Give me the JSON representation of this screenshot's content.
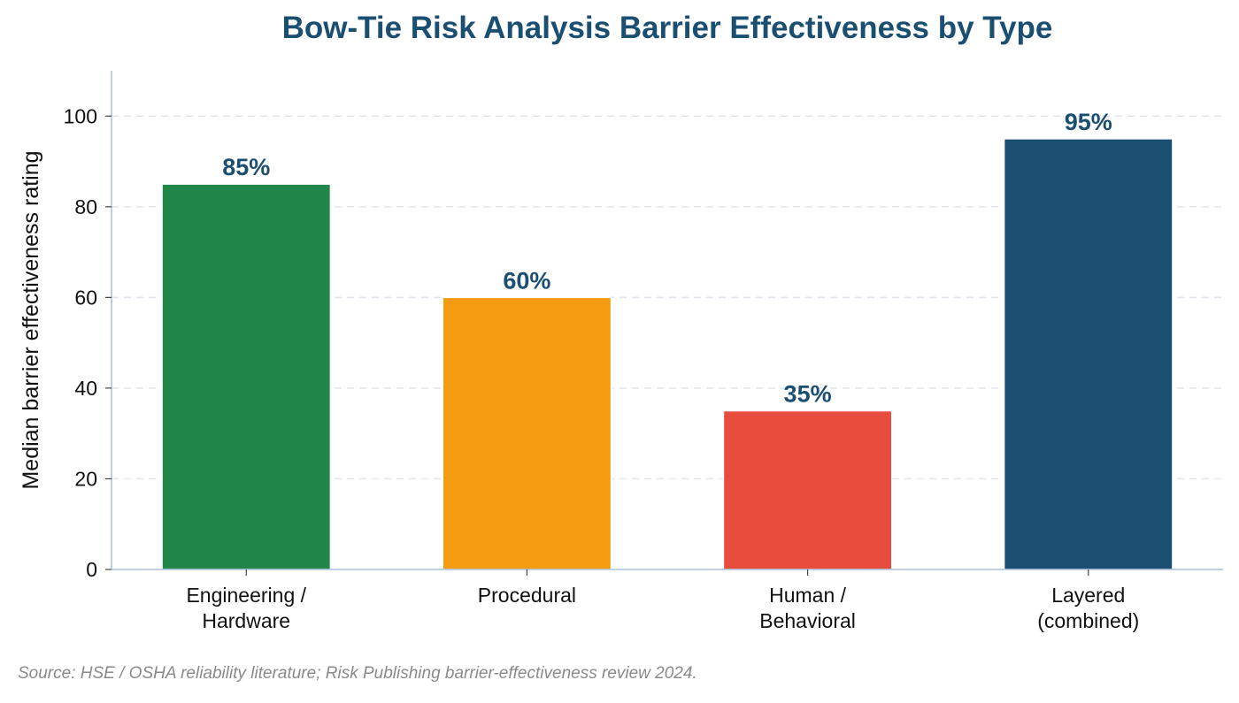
{
  "chart_data": {
    "type": "bar",
    "title": "Bow-Tie Risk Analysis Barrier Effectiveness by Type",
    "xlabel": "",
    "ylabel": "Median barrier effectiveness rating",
    "categories": [
      [
        "Engineering /",
        "Hardware"
      ],
      [
        "Procedural"
      ],
      [
        "Human /",
        "Behavioral"
      ],
      [
        "Layered",
        "(combined)"
      ]
    ],
    "values": [
      85,
      60,
      35,
      95
    ],
    "data_labels": [
      "85%",
      "60%",
      "35%",
      "95%"
    ],
    "colors": [
      "#21864a",
      "#f39c12",
      "#e74c3c",
      "#1b4f72"
    ],
    "ylim": [
      0,
      110
    ],
    "yticks": [
      0,
      20,
      40,
      60,
      80,
      100
    ],
    "grid": "horizontal dashed",
    "legend": "none",
    "source": "Source: HSE / OSHA reliability literature; Risk Publishing barrier-effectiveness review 2024."
  }
}
